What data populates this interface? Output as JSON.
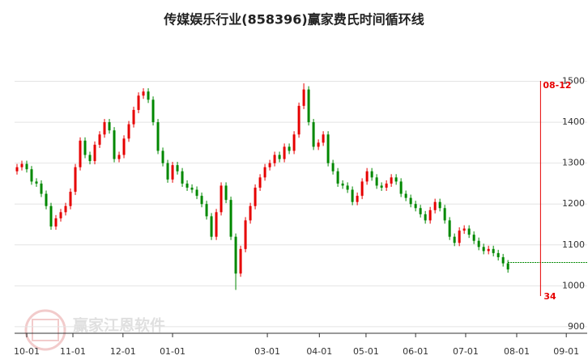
{
  "chart_data": {
    "type": "candlestick",
    "title": "传媒娱乐行业(858396)赢家费氏时间循环线",
    "watermark": "赢家江恩软件",
    "up_color": "#e60000",
    "down_color": "#008800",
    "grid": true,
    "ylim": [
      884,
      1590
    ],
    "yticks": [
      900,
      1000,
      1100,
      1200,
      1300,
      1400,
      1500
    ],
    "xlim": [
      -0.5,
      117.3
    ],
    "xticks": [
      {
        "value": 2,
        "label": "10-01"
      },
      {
        "value": 11.5,
        "label": "11-01"
      },
      {
        "value": 21.8,
        "label": "12-01"
      },
      {
        "value": 32,
        "label": "01-01"
      },
      {
        "value": 51.5,
        "label": "03-01"
      },
      {
        "value": 62.2,
        "label": "04-01"
      },
      {
        "value": 71.8,
        "label": "05-01"
      },
      {
        "value": 82,
        "label": "06-01"
      },
      {
        "value": 92.3,
        "label": "07-01"
      },
      {
        "value": 102.8,
        "label": "08-01"
      },
      {
        "value": 113,
        "label": "09-01"
      }
    ],
    "open": [
      1280,
      1290,
      1298,
      1285,
      1255,
      1250,
      1225,
      1195,
      1145,
      1165,
      1180,
      1195,
      1230,
      1290,
      1355,
      1320,
      1305,
      1345,
      1370,
      1400,
      1380,
      1310,
      1320,
      1360,
      1395,
      1430,
      1465,
      1475,
      1455,
      1400,
      1330,
      1300,
      1260,
      1295,
      1280,
      1250,
      1240,
      1235,
      1220,
      1200,
      1170,
      1120,
      1180,
      1245,
      1210,
      1120,
      1030,
      1090,
      1160,
      1195,
      1240,
      1265,
      1290,
      1300,
      1320,
      1310,
      1340,
      1330,
      1370,
      1440,
      1480,
      1400,
      1340,
      1350,
      1370,
      1300,
      1280,
      1250,
      1245,
      1235,
      1205,
      1220,
      1255,
      1280,
      1265,
      1245,
      1240,
      1250,
      1265,
      1255,
      1225,
      1215,
      1200,
      1190,
      1175,
      1160,
      1185,
      1205,
      1190,
      1160,
      1120,
      1105,
      1135,
      1140,
      1125,
      1110,
      1095,
      1085,
      1090,
      1080,
      1070,
      1055
    ],
    "close": [
      1290,
      1298,
      1285,
      1255,
      1250,
      1225,
      1195,
      1145,
      1165,
      1180,
      1195,
      1230,
      1290,
      1355,
      1320,
      1305,
      1345,
      1370,
      1400,
      1380,
      1310,
      1320,
      1360,
      1395,
      1430,
      1465,
      1475,
      1455,
      1400,
      1330,
      1300,
      1260,
      1295,
      1280,
      1250,
      1240,
      1235,
      1220,
      1200,
      1170,
      1120,
      1180,
      1245,
      1210,
      1120,
      1030,
      1090,
      1160,
      1195,
      1240,
      1265,
      1290,
      1300,
      1320,
      1310,
      1340,
      1330,
      1370,
      1440,
      1480,
      1400,
      1340,
      1350,
      1370,
      1300,
      1280,
      1250,
      1245,
      1235,
      1205,
      1220,
      1255,
      1280,
      1265,
      1245,
      1240,
      1250,
      1265,
      1255,
      1225,
      1215,
      1200,
      1190,
      1175,
      1160,
      1185,
      1205,
      1190,
      1160,
      1120,
      1105,
      1135,
      1140,
      1125,
      1110,
      1095,
      1085,
      1090,
      1080,
      1070,
      1055,
      1040
    ],
    "high": [
      1298,
      1306,
      1306,
      1293,
      1263,
      1258,
      1233,
      1203,
      1173,
      1188,
      1203,
      1238,
      1298,
      1363,
      1363,
      1328,
      1353,
      1378,
      1408,
      1408,
      1388,
      1328,
      1368,
      1403,
      1438,
      1473,
      1483,
      1483,
      1463,
      1408,
      1338,
      1308,
      1303,
      1303,
      1288,
      1258,
      1248,
      1243,
      1228,
      1208,
      1178,
      1188,
      1253,
      1253,
      1218,
      1128,
      1098,
      1168,
      1203,
      1248,
      1273,
      1298,
      1308,
      1328,
      1328,
      1348,
      1348,
      1378,
      1448,
      1495,
      1488,
      1408,
      1358,
      1378,
      1378,
      1308,
      1288,
      1258,
      1253,
      1243,
      1228,
      1263,
      1288,
      1288,
      1273,
      1253,
      1258,
      1273,
      1273,
      1263,
      1233,
      1223,
      1208,
      1198,
      1183,
      1193,
      1213,
      1213,
      1198,
      1168,
      1128,
      1143,
      1148,
      1148,
      1133,
      1118,
      1103,
      1098,
      1098,
      1088,
      1078,
      1063
    ],
    "low": [
      1272,
      1282,
      1277,
      1247,
      1242,
      1217,
      1187,
      1137,
      1137,
      1157,
      1172,
      1187,
      1222,
      1282,
      1312,
      1297,
      1297,
      1337,
      1362,
      1372,
      1302,
      1302,
      1312,
      1352,
      1387,
      1422,
      1457,
      1447,
      1392,
      1322,
      1292,
      1252,
      1252,
      1272,
      1242,
      1232,
      1227,
      1212,
      1192,
      1162,
      1112,
      1112,
      1172,
      1202,
      1112,
      990,
      1022,
      1082,
      1152,
      1187,
      1232,
      1257,
      1282,
      1292,
      1302,
      1302,
      1322,
      1322,
      1362,
      1432,
      1392,
      1332,
      1332,
      1342,
      1292,
      1272,
      1242,
      1237,
      1227,
      1197,
      1197,
      1212,
      1247,
      1257,
      1237,
      1232,
      1232,
      1242,
      1247,
      1217,
      1207,
      1192,
      1182,
      1167,
      1152,
      1152,
      1177,
      1182,
      1152,
      1112,
      1097,
      1097,
      1127,
      1117,
      1102,
      1087,
      1077,
      1077,
      1072,
      1062,
      1047,
      1032
    ],
    "reference_line": {
      "value": 1057,
      "color": "#008800"
    },
    "cycle_marker": {
      "x": 107.7,
      "label": "08-12",
      "count": 34,
      "color": "#e60000"
    }
  }
}
